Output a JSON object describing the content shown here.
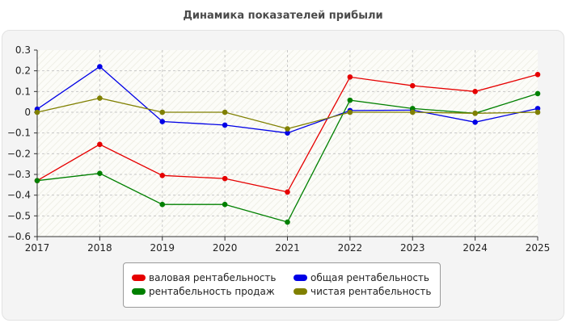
{
  "title": "Динамика показателей прибыли",
  "chart_data": {
    "type": "line",
    "title": "Динамика показателей прибыли",
    "x": [
      "2017",
      "2018",
      "2019",
      "2020",
      "2021",
      "2022",
      "2023",
      "2024",
      "2025"
    ],
    "ylim": [
      -0.6,
      0.3
    ],
    "yticks": [
      0.3,
      0.2,
      0.1,
      0,
      -0.1,
      -0.2,
      -0.3,
      -0.4,
      -0.5,
      -0.6
    ],
    "ytick_labels": [
      "0.3",
      "0.2",
      "0.1",
      "0",
      "−0.1",
      "−0.2",
      "−0.3",
      "−0.4",
      "−0.5",
      "−0.6"
    ],
    "grid": true,
    "legend_position": "bottom",
    "series": [
      {
        "name": "валовая рентабельность",
        "color": "#e60000",
        "values": [
          -0.33,
          -0.155,
          -0.305,
          -0.32,
          -0.385,
          0.17,
          0.128,
          0.1,
          0.182
        ]
      },
      {
        "name": "общая рентабельность",
        "color": "#0000e6",
        "values": [
          0.015,
          0.22,
          -0.045,
          -0.062,
          -0.1,
          0.008,
          0.01,
          -0.048,
          0.018
        ]
      },
      {
        "name": "рентабельность продаж",
        "color": "#008000",
        "values": [
          -0.33,
          -0.295,
          -0.445,
          -0.445,
          -0.53,
          0.058,
          0.018,
          -0.005,
          0.09
        ]
      },
      {
        "name": "чистая рентабельность",
        "color": "#808000",
        "values": [
          0.0,
          0.068,
          0.0,
          0.0,
          -0.08,
          0.0,
          0.0,
          -0.005,
          0.0
        ]
      }
    ]
  }
}
